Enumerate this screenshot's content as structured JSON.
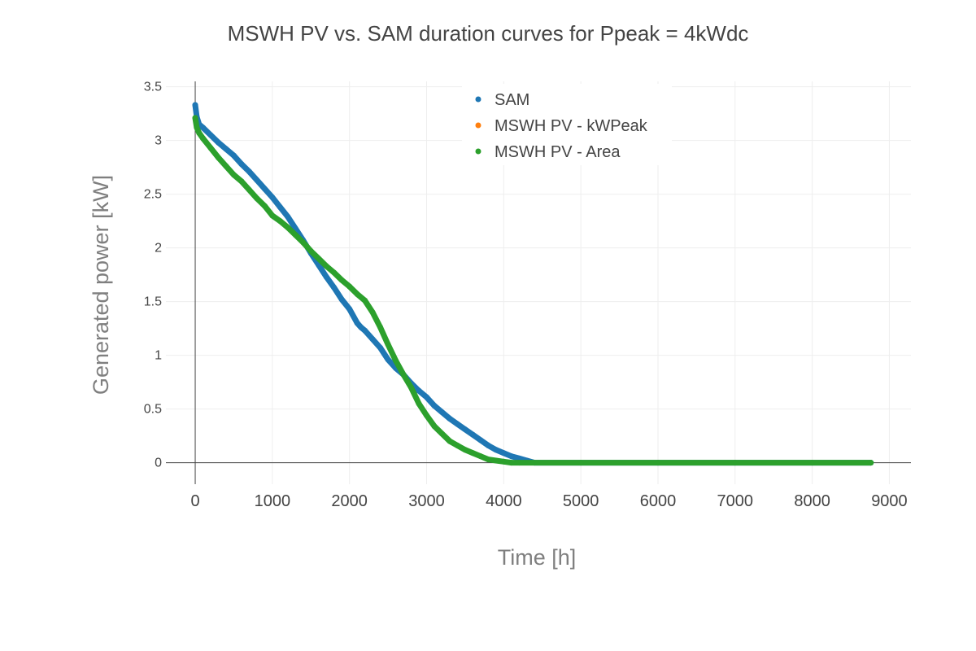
{
  "chart_data": {
    "type": "scatter",
    "title": "MSWH PV vs. SAM duration curves for Ppeak = 4kWdc",
    "xlabel": "Time [h]",
    "ylabel": "Generated power [kW]",
    "xlim": [
      -380,
      9280
    ],
    "ylim": [
      -0.2,
      3.55
    ],
    "xticks": [
      0,
      1000,
      2000,
      3000,
      4000,
      5000,
      6000,
      7000,
      8000,
      9000
    ],
    "yticks": [
      0,
      0.5,
      1,
      1.5,
      2,
      2.5,
      3,
      3.5
    ],
    "xtick_labels": [
      "0",
      "1000",
      "2000",
      "3000",
      "4000",
      "5000",
      "6000",
      "7000",
      "8000",
      "9000"
    ],
    "ytick_labels": [
      "0",
      "0.5",
      "1",
      "1.5",
      "2",
      "2.5",
      "3",
      "3.5"
    ],
    "grid": true,
    "legend_position": "top-center",
    "series": [
      {
        "name": "SAM",
        "color": "#1f77b4",
        "x": [
          0,
          20,
          50,
          100,
          200,
          300,
          400,
          500,
          600,
          700,
          800,
          900,
          1000,
          1100,
          1200,
          1300,
          1400,
          1500,
          1600,
          1700,
          1800,
          1900,
          2000,
          2100,
          2150,
          2200,
          2300,
          2400,
          2500,
          2600,
          2700,
          2800,
          2900,
          3000,
          3100,
          3200,
          3300,
          3400,
          3500,
          3600,
          3700,
          3800,
          3900,
          4000,
          4100,
          4200,
          4300,
          4400,
          5000,
          6000,
          7000,
          8000,
          8760
        ],
        "y": [
          3.33,
          3.22,
          3.15,
          3.12,
          3.05,
          2.98,
          2.92,
          2.86,
          2.78,
          2.71,
          2.63,
          2.55,
          2.47,
          2.38,
          2.29,
          2.18,
          2.07,
          1.95,
          1.84,
          1.73,
          1.63,
          1.52,
          1.43,
          1.3,
          1.26,
          1.23,
          1.15,
          1.07,
          0.96,
          0.88,
          0.82,
          0.74,
          0.67,
          0.61,
          0.53,
          0.47,
          0.41,
          0.36,
          0.31,
          0.26,
          0.21,
          0.16,
          0.12,
          0.09,
          0.06,
          0.04,
          0.02,
          0.0,
          0.0,
          0.0,
          0.0,
          0.0,
          0.0
        ]
      },
      {
        "name": "MSWH PV - kWPeak",
        "color": "#ff7f0e",
        "x": [],
        "y": []
      },
      {
        "name": "MSWH PV - Area",
        "color": "#2ca02c",
        "x": [
          0,
          20,
          50,
          100,
          200,
          300,
          400,
          500,
          600,
          700,
          800,
          900,
          1000,
          1100,
          1200,
          1300,
          1400,
          1500,
          1600,
          1700,
          1800,
          1900,
          2000,
          2100,
          2200,
          2300,
          2400,
          2500,
          2600,
          2700,
          2800,
          2900,
          3000,
          3100,
          3200,
          3300,
          3400,
          3500,
          3600,
          3700,
          3800,
          3900,
          4000,
          4100,
          4200,
          5000,
          6000,
          7000,
          8000,
          8760
        ],
        "y": [
          3.21,
          3.12,
          3.07,
          3.02,
          2.93,
          2.84,
          2.76,
          2.68,
          2.62,
          2.54,
          2.46,
          2.39,
          2.3,
          2.25,
          2.19,
          2.12,
          2.05,
          1.97,
          1.9,
          1.83,
          1.77,
          1.7,
          1.64,
          1.57,
          1.51,
          1.4,
          1.26,
          1.1,
          0.95,
          0.82,
          0.7,
          0.55,
          0.44,
          0.34,
          0.27,
          0.2,
          0.16,
          0.12,
          0.09,
          0.06,
          0.03,
          0.02,
          0.01,
          0.0,
          0.0,
          0.0,
          0.0,
          0.0,
          0.0,
          0.0
        ]
      }
    ]
  }
}
